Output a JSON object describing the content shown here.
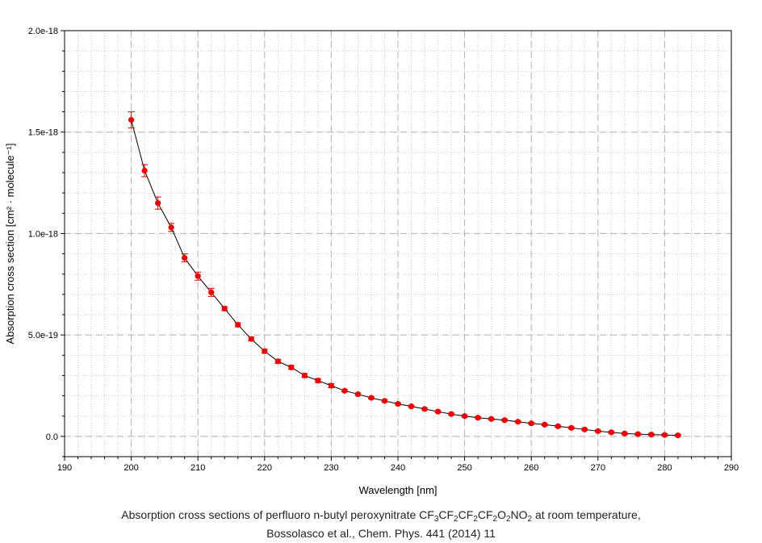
{
  "chart_data": {
    "type": "scatter",
    "xlabel": "Wavelength [nm]",
    "ylabel": "Absorption cross section [cm² · molecule⁻¹]",
    "xlim": [
      190,
      290
    ],
    "ylim": [
      -1e-19,
      2e-18
    ],
    "x_ticks": [
      "190",
      "200",
      "210",
      "220",
      "230",
      "240",
      "250",
      "260",
      "270",
      "280",
      "290"
    ],
    "y_ticks": [
      "0.0",
      "5.0e-19",
      "1.0e-18",
      "1.5e-18",
      "2.0e-18"
    ],
    "y_tick_values": [
      0,
      5e-19,
      1e-18,
      1.5e-18,
      2e-18
    ],
    "grid": true,
    "marker_color": "#ee0000",
    "line_color": "#000000",
    "x": [
      200,
      202,
      204,
      206,
      208,
      210,
      212,
      214,
      216,
      218,
      220,
      222,
      224,
      226,
      228,
      230,
      232,
      234,
      236,
      238,
      240,
      242,
      244,
      246,
      248,
      250,
      252,
      254,
      256,
      258,
      260,
      262,
      264,
      266,
      268,
      270,
      272,
      274,
      276,
      278,
      280,
      282
    ],
    "y": [
      1.56e-18,
      1.31e-18,
      1.15e-18,
      1.03e-18,
      8.8e-19,
      7.9e-19,
      7.1e-19,
      6.3e-19,
      5.5e-19,
      4.8e-19,
      4.2e-19,
      3.7e-19,
      3.4e-19,
      3e-19,
      2.75e-19,
      2.5e-19,
      2.25e-19,
      2.08e-19,
      1.9e-19,
      1.75e-19,
      1.6e-19,
      1.48e-19,
      1.35e-19,
      1.22e-19,
      1.1e-19,
      1e-19,
      9.2e-20,
      8.6e-20,
      8e-20,
      7.2e-20,
      6.4e-20,
      5.8e-20,
      5e-20,
      4.2e-20,
      3.4e-20,
      2.6e-20,
      2e-20,
      1.4e-20,
      1.1e-20,
      9e-21,
      7e-21,
      5e-21
    ],
    "y_err": [
      4e-20,
      3e-20,
      3e-20,
      2e-20,
      2e-20,
      2e-20,
      2e-20,
      1e-20,
      1e-20,
      1e-20,
      1e-20,
      1e-20,
      1e-20,
      1e-20,
      1e-20,
      1e-20,
      5e-21,
      5e-21,
      5e-21,
      5e-21,
      5e-21,
      5e-21,
      5e-21,
      5e-21,
      5e-21,
      5e-21,
      5e-21,
      5e-21,
      5e-21,
      5e-21,
      5e-21,
      5e-21,
      5e-21,
      5e-21,
      5e-21,
      5e-21,
      5e-21,
      5e-21,
      5e-21,
      5e-21,
      5e-21,
      5e-21
    ]
  },
  "caption": {
    "line1_prefix": "Absorption cross sections of perfluoro n-butyl peroxynitrate ",
    "formula": [
      {
        "t": "CF"
      },
      {
        "s": "3"
      },
      {
        "t": "CF"
      },
      {
        "s": "2"
      },
      {
        "t": "CF"
      },
      {
        "s": "2"
      },
      {
        "t": "CF"
      },
      {
        "s": "2"
      },
      {
        "t": "O"
      },
      {
        "s": "2"
      },
      {
        "t": "NO"
      },
      {
        "s": "2"
      }
    ],
    "line1_suffix": " at room temperature,",
    "line2": "Bossolasco et al., Chem. Phys. 441 (2014) 11"
  }
}
